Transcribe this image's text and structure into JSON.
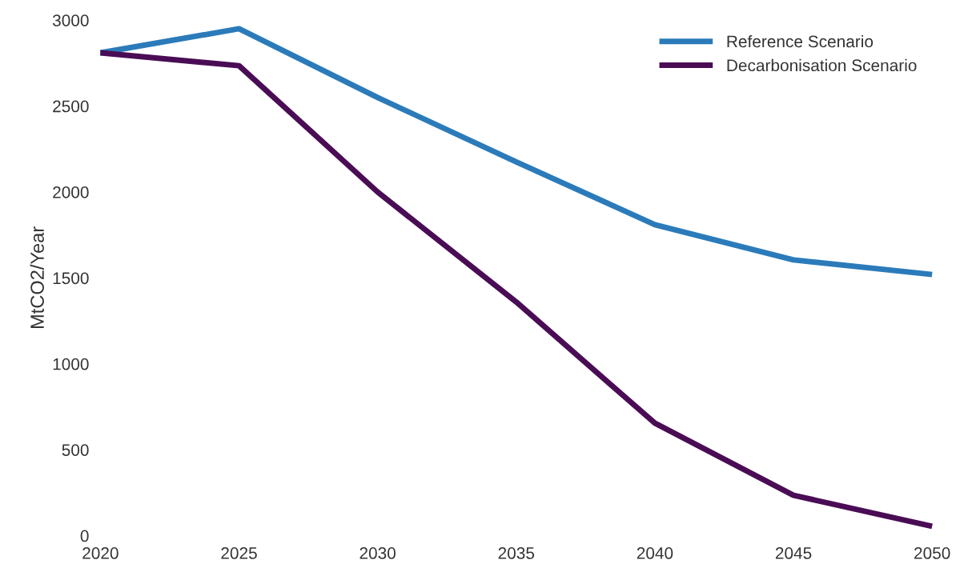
{
  "chart_data": {
    "type": "line",
    "ylabel": "MtCO2/Year",
    "x": [
      2020,
      2025,
      2030,
      2035,
      2040,
      2045,
      2050
    ],
    "series": [
      {
        "name": "Reference Scenario",
        "color": "#2b7bba",
        "values": [
          2810,
          2950,
          2550,
          2175,
          1810,
          1605,
          1520
        ]
      },
      {
        "name": "Decarbonisation Scenario",
        "color": "#4a0d55",
        "values": [
          2810,
          2735,
          2000,
          1360,
          655,
          235,
          55
        ]
      }
    ],
    "xlim": [
      2020,
      2050
    ],
    "xticks": [
      2020,
      2025,
      2030,
      2035,
      2040,
      2045,
      2050
    ],
    "ylim": [
      0,
      3000
    ],
    "yticks": [
      0,
      500,
      1000,
      1500,
      2000,
      2500,
      3000
    ],
    "grid": false,
    "legend": "top right",
    "marker": "none",
    "line_style": "solid"
  }
}
